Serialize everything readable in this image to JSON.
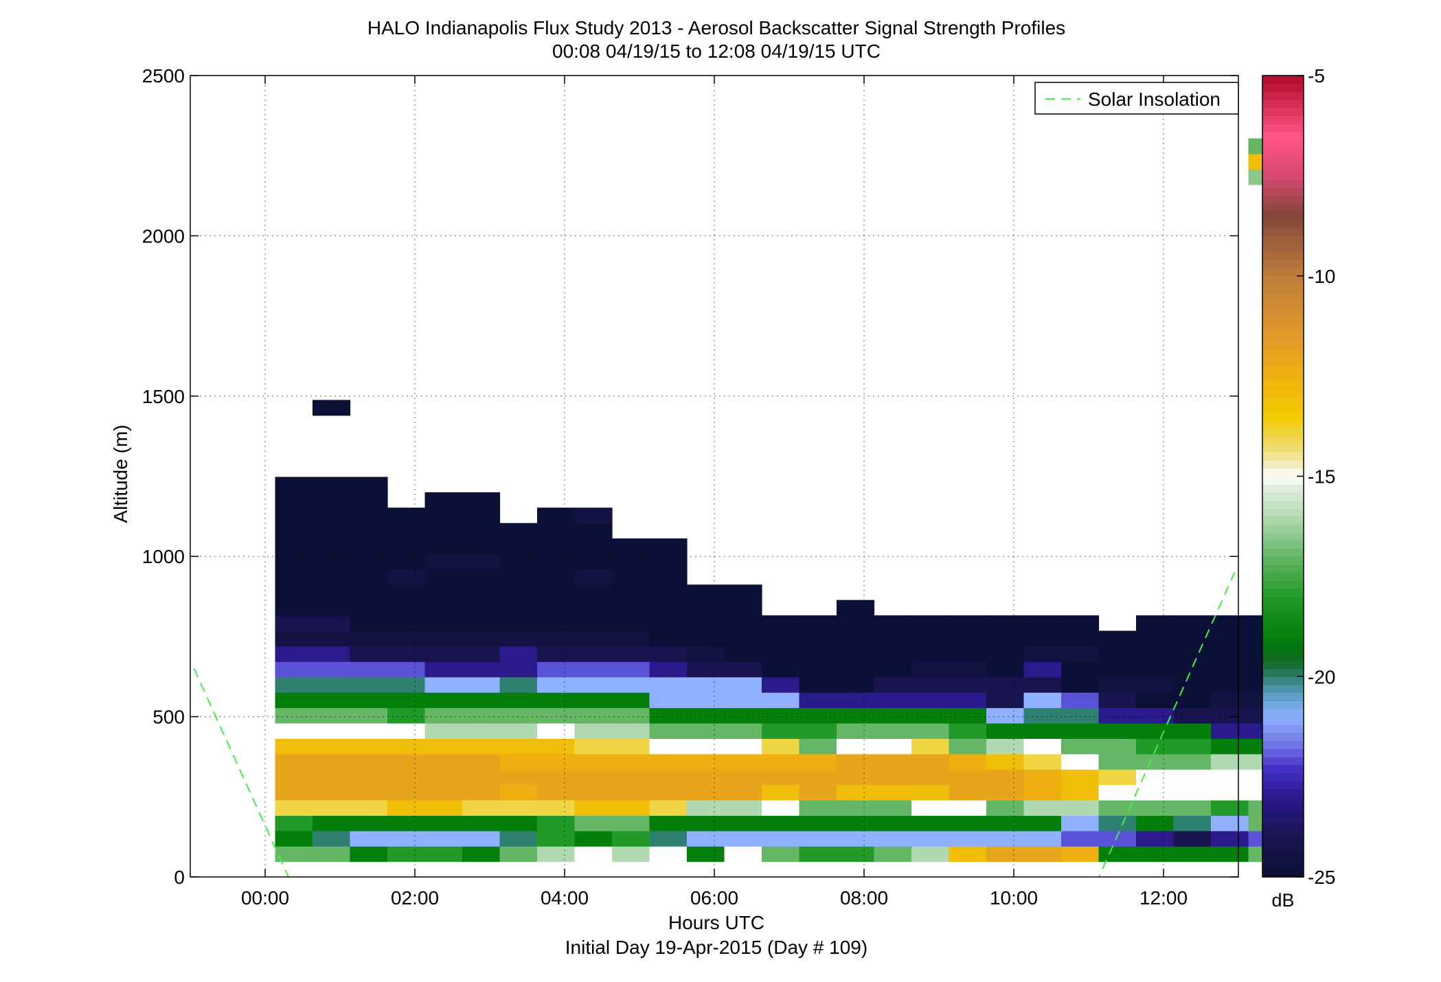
{
  "chart_data": {
    "type": "heatmap",
    "title": "HALO Indianapolis Flux Study 2013 - Aerosol Backscatter Signal Strength Profiles",
    "subtitle": "00:08 04/19/15 to 12:08 04/19/15  UTC",
    "xlabel": "Hours UTC",
    "xlabel2": "Initial Day 19-Apr-2015 (Day # 109)",
    "ylabel": "Altitude (m)",
    "xlim": [
      -1,
      13
    ],
    "ylim": [
      0,
      2500
    ],
    "x_ticks": [
      0,
      2,
      4,
      6,
      8,
      10,
      12
    ],
    "x_tick_labels": [
      "00:00",
      "02:00",
      "04:00",
      "06:00",
      "08:00",
      "10:00",
      "12:00"
    ],
    "y_ticks": [
      0,
      500,
      1000,
      1500,
      2000,
      2500
    ],
    "y_tick_labels": [
      "0",
      "500",
      "1000",
      "1500",
      "2000",
      "2500"
    ],
    "grid": true,
    "legend": {
      "position": "top-right",
      "entries": [
        {
          "name": "Solar Insolation",
          "color": "#44ee44",
          "style": "dashed"
        }
      ]
    },
    "colorbar": {
      "label": "dB",
      "range": [
        -25,
        -5
      ],
      "tick_values": [
        -5,
        -10,
        -15,
        -20,
        -25
      ],
      "tick_labels": [
        "-5",
        "-10",
        "-15",
        "-20",
        "-25"
      ]
    },
    "cell_width_hours": 0.5,
    "cell_height_m": 48,
    "time_start_hours": 0.133,
    "altitude_start_m": 48,
    "columns": [
      [
        -17,
        -19,
        -18,
        -14,
        -12,
        -12,
        -12,
        -13,
        -15,
        -17,
        -19,
        -20,
        -22,
        -23,
        -24.5,
        -24,
        -25,
        -25,
        -25,
        -25,
        -25,
        -25,
        -25,
        -25,
        -25
      ],
      [
        -17,
        -20,
        -19,
        -14,
        -12,
        -12,
        -12,
        -13,
        -15,
        -17,
        -19,
        -20,
        -22,
        -23,
        -24.5,
        -24,
        -25,
        -25,
        -25,
        -25,
        -25,
        -25,
        -25,
        -25,
        -25,
        null,
        null,
        null,
        null,
        -25
      ],
      [
        -19,
        -21,
        -19,
        -14,
        -12,
        -12,
        -12,
        -13,
        -15,
        -17,
        -19,
        -20,
        -22,
        -24,
        -24.5,
        -25,
        -25,
        -25,
        -25,
        -25,
        -25,
        -25,
        -25,
        -25,
        -25
      ],
      [
        -18,
        -21,
        -19,
        -13,
        -12,
        -12,
        -12,
        -13,
        -15,
        -18,
        -19,
        -20,
        -22,
        -24,
        -24.5,
        -25,
        -25,
        -25,
        -24.5,
        -25,
        -25,
        -25,
        -25
      ],
      [
        -18,
        -21,
        -19,
        -13,
        -12,
        -12,
        -12,
        -13,
        -16,
        -17,
        -19,
        -21,
        -23,
        -24,
        -24.5,
        -25,
        -25,
        -25,
        -25,
        -24.5,
        -25,
        -25,
        -25,
        -25
      ],
      [
        -19,
        -21,
        -19,
        -14,
        -12,
        -12,
        -12,
        -13,
        -16,
        -17,
        -19,
        -21,
        -23,
        -24,
        -24.5,
        -25,
        -25,
        -25,
        -25,
        -24.5,
        -25,
        -25,
        -25,
        -25
      ],
      [
        -17,
        -20,
        -19,
        -14,
        -12.5,
        -12,
        -12.5,
        -13,
        -16,
        -17,
        -19,
        -20,
        -23,
        -23,
        -24.5,
        -25,
        -25,
        -25,
        -25,
        -25,
        -25,
        -25
      ],
      [
        -16,
        -18,
        -18,
        -14,
        -12,
        -12,
        -12.5,
        -13,
        -15,
        -17,
        -19,
        -21,
        -22,
        -24,
        -24.5,
        -25,
        -25,
        -25,
        -25,
        -25,
        -25,
        -25,
        -25
      ],
      [
        -15,
        -19,
        -17,
        -13,
        -12,
        -12,
        -12.5,
        -14,
        -16,
        -17,
        -19,
        -21,
        -22,
        -24,
        -24.5,
        -25,
        -25,
        -25,
        -24.5,
        -25,
        -25,
        -25,
        -24.5
      ],
      [
        -16,
        -18,
        -17,
        -13,
        -12,
        -12,
        -12.5,
        -14,
        -16,
        -17,
        -19,
        -21,
        -22,
        -24,
        -24.5,
        -25,
        -25,
        -25,
        -25,
        -25,
        -25
      ],
      [
        -15,
        -20,
        -19,
        -14,
        -12,
        -12,
        -12.5,
        -15,
        -17,
        -19,
        -21,
        -21,
        -23,
        -24,
        -25,
        -25,
        -25,
        -25,
        -25,
        -25,
        -25
      ],
      [
        -19,
        -21,
        -19,
        -16,
        -12,
        -12,
        -12.5,
        -15,
        -17,
        -19,
        -21,
        -21,
        -24,
        -24.5,
        -25,
        -25,
        -25,
        -25
      ],
      [
        -15,
        -21,
        -19,
        -16,
        -12,
        -12,
        -12.5,
        -15,
        -17,
        -19,
        -21,
        -21,
        -24,
        -25,
        -25,
        -25,
        -25,
        -25
      ],
      [
        -17,
        -21,
        -19,
        -15,
        -13,
        -12,
        -12.5,
        -14,
        -18,
        -19,
        -21,
        -23,
        -25,
        -25,
        -25,
        -25
      ],
      [
        -18,
        -21,
        -19,
        -17,
        -12,
        -12,
        -12.5,
        -17,
        -18,
        -19,
        -23,
        -25,
        -25,
        -25,
        -25,
        -25
      ],
      [
        -18,
        -21,
        -19,
        -17,
        -13,
        -12,
        -12,
        -15,
        -17,
        -19,
        -23,
        -25,
        -25,
        -25,
        -25,
        -25,
        -25
      ],
      [
        -17,
        -21,
        -19,
        -17,
        -13,
        -12,
        -12,
        -15,
        -17,
        -19,
        -23,
        -24,
        -25,
        -25,
        -25,
        -25
      ],
      [
        -16,
        -21,
        -19,
        -15,
        -13,
        -12,
        -12,
        -14,
        -17,
        -19,
        -23,
        -24,
        -24.5,
        -25,
        -25,
        -25
      ],
      [
        -13,
        -21,
        -19,
        -15,
        -12,
        -12,
        -12.5,
        -17,
        -18,
        -19,
        -23,
        -24,
        -24.5,
        -25,
        -25,
        -25
      ],
      [
        -12,
        -21,
        -19,
        -17,
        -12,
        -12,
        -13,
        -16,
        -19,
        -21,
        -24,
        -24,
        -25,
        -25,
        -25,
        -25
      ],
      [
        -12,
        -21,
        -19,
        -16,
        -12.5,
        -12.5,
        -14,
        -15,
        -19,
        -20,
        -21,
        -24,
        -23,
        -24.5,
        -25,
        -25
      ],
      [
        -12.5,
        -22,
        -21,
        -16,
        -13,
        -13,
        -15,
        -17,
        -19,
        -20,
        -22,
        -25,
        -25,
        -24.5,
        -25,
        -25
      ],
      [
        -19,
        -22,
        -20,
        -17,
        -15,
        -14,
        -17,
        -17,
        -19,
        -23,
        -24,
        -24.5,
        -25,
        -25,
        -25
      ],
      [
        -19,
        -23,
        -19,
        -17,
        -15,
        -15,
        -17,
        -18,
        -19,
        -23,
        -25,
        -24.5,
        -25,
        -25,
        -25,
        -25
      ],
      [
        -19,
        -24,
        -20,
        -17,
        -15,
        -15,
        -17,
        -18,
        -19,
        -24,
        -25,
        -25,
        -25,
        -25,
        -25,
        -25
      ],
      [
        -19,
        -23,
        -21,
        -18,
        -15,
        -15,
        -16,
        -19,
        -23,
        -24,
        -24.5,
        -25,
        -25,
        -25,
        -25,
        -25
      ],
      [
        -17,
        -22,
        -17,
        -17,
        -15,
        -15,
        -16,
        -19,
        -23,
        -24,
        -24.5,
        -25,
        -25,
        -25,
        -25,
        -25,
        null,
        null,
        null,
        null,
        null,
        null,
        null,
        null,
        null,
        null,
        null,
        null,
        null,
        null,
        null,
        null,
        null,
        null,
        null,
        null,
        null,
        null,
        null,
        null,
        null,
        null,
        null,
        null,
        -16.5,
        -13,
        -17
      ]
    ]
  }
}
